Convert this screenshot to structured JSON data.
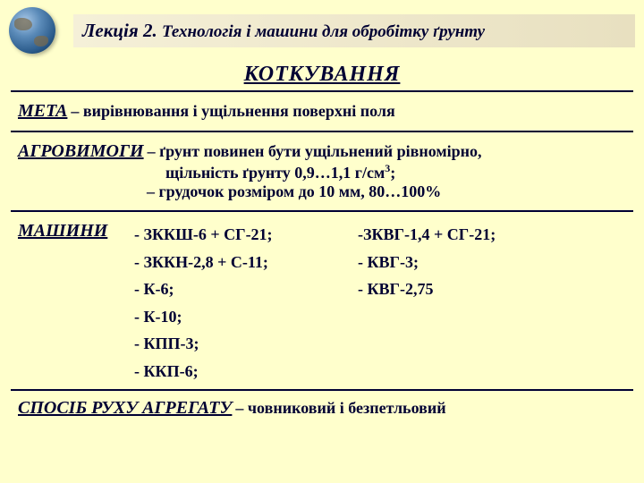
{
  "header": {
    "lecture": "Лекція 2.",
    "subtitle": "Технологія і машини для обробітку ґрунту"
  },
  "main_title": "КОТКУВАННЯ",
  "meta": {
    "label": "МЕТА",
    "text": "– вирівнювання і ущільнення поверхні поля"
  },
  "agro": {
    "label": "АГРОВИМОГИ",
    "line1": "– ґрунт повинен бути ущільнений рівномірно,",
    "line2a": "щільність ґрунту 0,9…1,1 г/см",
    "line2b": ";",
    "line3": "– грудочок розміром до 10 мм, 80…100%"
  },
  "machines": {
    "label": "МАШИНИ",
    "col1": [
      "- ЗККШ-6 + СГ-21;",
      "- ЗККН-2,8 + С-11;",
      "- К-6;",
      "- К-10;",
      "- КПП-3;",
      "- ККП-6;"
    ],
    "col2": [
      "-ЗКВГ-1,4 + СГ-21;",
      "- КВГ-3;",
      "- КВГ-2,75"
    ]
  },
  "method": {
    "label": "СПОСІБ РУХУ АГРЕГАТУ",
    "text": "– човниковий і безпетльовий"
  }
}
